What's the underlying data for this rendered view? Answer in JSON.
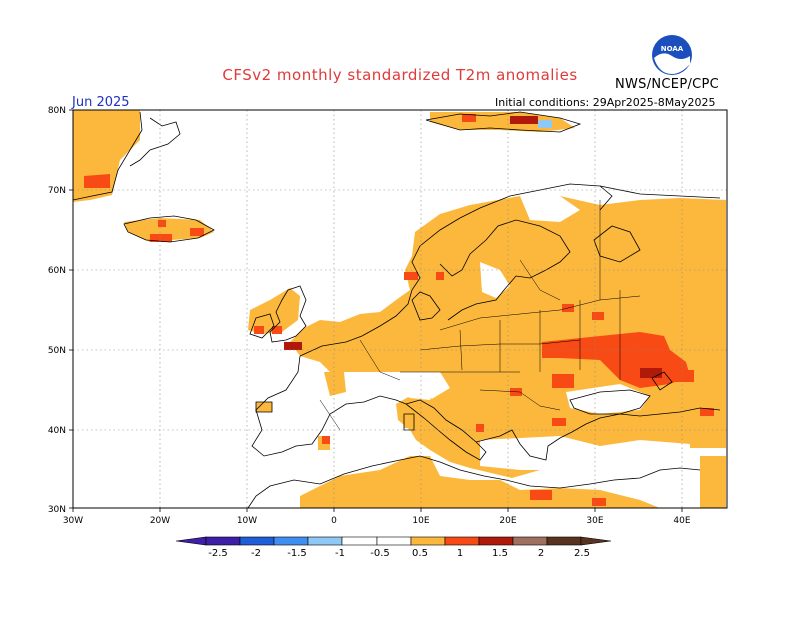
{
  "header": {
    "title": "CFSv2 monthly standardized T2m anomalies",
    "month": "Jun 2025",
    "initial_conditions": "Initial conditions: 29Apr2025-8May2025",
    "agency": "NWS/NCEP/CPC",
    "logo_text": "NOAA"
  },
  "colors": {
    "title": "#e03a3a",
    "month": "#2030c0",
    "agency": "#000000",
    "ocean": "#ffffff",
    "coast": "#000000",
    "grid": "#888888"
  },
  "map": {
    "region": "Europe",
    "lon_range": [
      -30,
      45
    ],
    "lat_range": [
      30,
      80
    ],
    "lat_labels": [
      "80N",
      "70N",
      "60N",
      "50N",
      "40N",
      "30N"
    ],
    "lon_labels": [
      "30W",
      "20W",
      "10W",
      "0",
      "10E",
      "20E",
      "30E",
      "40E"
    ]
  },
  "colorbar": {
    "labels": [
      "-2.5",
      "-2",
      "-1.5",
      "-1",
      "-0.5",
      "0.5",
      "1",
      "1.5",
      "2",
      "2.5"
    ],
    "colors": [
      "#3d1fa8",
      "#1e5ed6",
      "#3f8ff0",
      "#8fc8f4",
      "#ffffff",
      "#fcb83c",
      "#f84a14",
      "#b01a0a",
      "#a07060",
      "#5a3320"
    ],
    "left_end_color": "#3d1fa8",
    "right_end_color": "#5a3320"
  },
  "legend_scale": {
    "0.5_to_1": "#fcb83c",
    "1_to_1.5": "#f84a14",
    "1.5_to_2": "#b01a0a",
    "-1_to_-0.5": "#8fc8f4"
  }
}
